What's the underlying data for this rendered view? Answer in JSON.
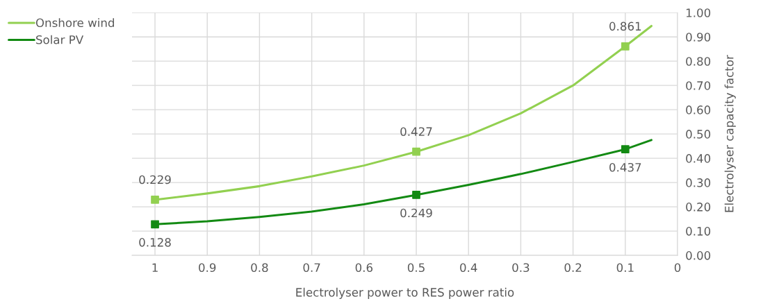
{
  "chart_data": {
    "type": "line",
    "xlabel": "Electrolyser power to RES power ratio",
    "ylabel": "Electrolyser capacity factor",
    "xlim": [
      1.044,
      0
    ],
    "xticks": [
      1,
      0.9,
      0.8,
      0.7,
      0.6,
      0.5,
      0.4,
      0.3,
      0.2,
      0.1,
      0
    ],
    "ylim": [
      0,
      1
    ],
    "yticks": [
      {
        "value": 0,
        "label": "0.00"
      },
      {
        "value": 0.1,
        "label": "0.10"
      },
      {
        "value": 0.2,
        "label": "0.20"
      },
      {
        "value": 0.3,
        "label": "0.30"
      },
      {
        "value": 0.4,
        "label": "0.40"
      },
      {
        "value": 0.5,
        "label": "0.50"
      },
      {
        "value": 0.6,
        "label": "0.60"
      },
      {
        "value": 0.7,
        "label": "0.70"
      },
      {
        "value": 0.8,
        "label": "0.80"
      },
      {
        "value": 0.9,
        "label": "0.90"
      },
      {
        "value": 1,
        "label": "1.00"
      }
    ],
    "grid": true,
    "legend": "top left",
    "series": [
      {
        "name": "Onshore wind",
        "color": "#92d050",
        "marker": "none",
        "x": [
          1,
          0.9,
          0.8,
          0.7,
          0.6,
          0.5,
          0.4,
          0.3,
          0.2,
          0.1,
          0.05
        ],
        "values": [
          0.229,
          0.255,
          0.285,
          0.325,
          0.37,
          0.427,
          0.495,
          0.585,
          0.7,
          0.861,
          0.945
        ]
      },
      {
        "name": "Solar PV",
        "color": "#138a13",
        "marker": "none",
        "x": [
          1,
          0.9,
          0.8,
          0.7,
          0.6,
          0.5,
          0.4,
          0.3,
          0.2,
          0.1,
          0.05
        ],
        "values": [
          0.128,
          0.14,
          0.158,
          0.18,
          0.21,
          0.249,
          0.29,
          0.335,
          0.385,
          0.437,
          0.475
        ]
      },
      {
        "type": "scatter",
        "color": "#92d050",
        "marker": "square",
        "x": [
          1,
          0.5,
          0.1
        ],
        "values": [
          0.229,
          0.427,
          0.861
        ],
        "value_labels": [
          "0.229",
          "0.427",
          "0.861"
        ]
      },
      {
        "type": "scatter",
        "color": "#138a13",
        "marker": "square",
        "x": [
          1,
          0.5,
          0.1
        ],
        "values": [
          0.128,
          0.249,
          0.437
        ],
        "value_labels": [
          "0.128",
          "0.249",
          "0.437"
        ]
      }
    ]
  }
}
